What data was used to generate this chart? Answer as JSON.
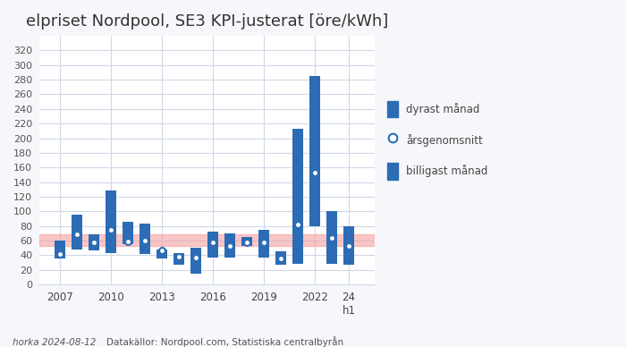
{
  "title": "elpriset Nordpool, SE3 KPI-justerat [öre/kWh]",
  "years": [
    2007,
    2008,
    2009,
    2010,
    2011,
    2012,
    2013,
    2014,
    2015,
    2016,
    2017,
    2018,
    2019,
    2020,
    2021,
    2022,
    2023,
    2024
  ],
  "highest": [
    60,
    95,
    68,
    128,
    85,
    83,
    48,
    43,
    50,
    72,
    70,
    65,
    75,
    45,
    213,
    285,
    100,
    80
  ],
  "average": [
    42,
    68,
    57,
    75,
    59,
    60,
    46,
    38,
    37,
    57,
    52,
    58,
    58,
    36,
    82,
    153,
    63,
    52
  ],
  "lowest": [
    35,
    48,
    46,
    43,
    55,
    42,
    35,
    27,
    15,
    37,
    37,
    52,
    37,
    27,
    28,
    80,
    28,
    27
  ],
  "bar_color": "#2b6cb5",
  "avg_dot_facecolor": "#ffffff",
  "avg_dot_edgecolor": "#2b6cb5",
  "band_color": "#f4a0a0",
  "band_alpha": 0.6,
  "band_ymin": 53,
  "band_ymax": 68,
  "ylim": [
    0,
    340
  ],
  "yticks": [
    0,
    20,
    40,
    60,
    80,
    100,
    120,
    140,
    160,
    180,
    200,
    220,
    240,
    260,
    280,
    300,
    320
  ],
  "xtick_labels": [
    "2007",
    "2010",
    "2013",
    "2016",
    "2019",
    "2022",
    "24\nh1"
  ],
  "xtick_positions": [
    2007,
    2010,
    2013,
    2016,
    2019,
    2022,
    2024
  ],
  "bg_color": "#f5f7fa",
  "plot_bg_color": "#ffffff",
  "grid_color": "#d0d8e8",
  "legend_labels": [
    "dyrast månad",
    "årsgenomsnitt",
    "billigast månad"
  ],
  "footer_left": "horka 2024-08-12",
  "footer_right": "Datakällor: Nordpool.com, Statistiska centralbyrån",
  "bar_width": 0.65
}
